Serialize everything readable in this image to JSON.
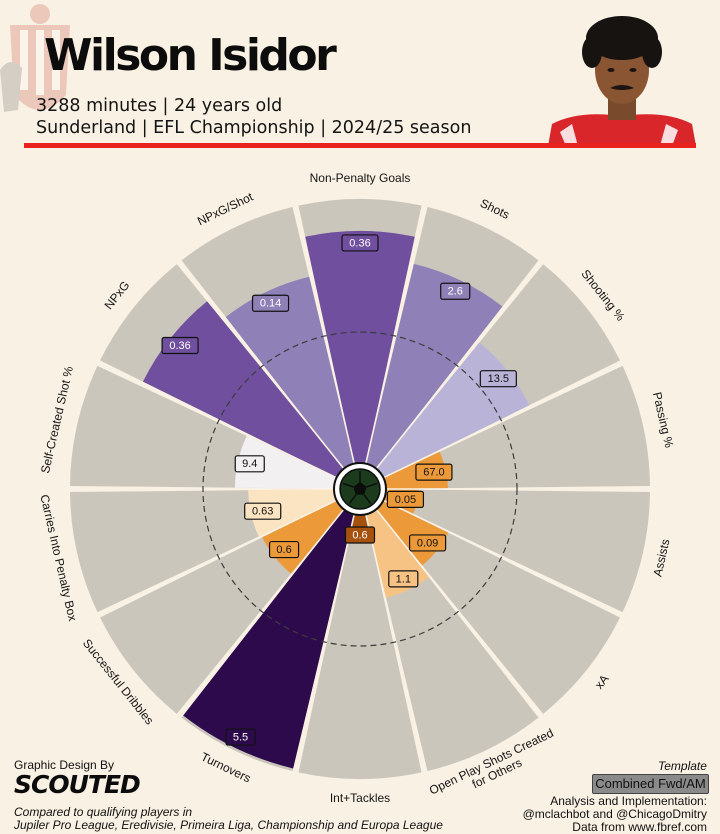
{
  "header": {
    "player_name": "Wilson Isidor",
    "stats_line": "3288 minutes | 24 years old",
    "context_line": "Sunderland | EFL Championship | 2024/25 season",
    "accent_color": "#e8231f"
  },
  "footer": {
    "design_by": "Graphic Design By",
    "brand": "SCOUTED",
    "compared_line1": "Compared to qualifying players in",
    "compared_line2": "Jupiler Pro League, Eredivisie, Primeira Liga, Championship and Europa League",
    "template_label": "Template",
    "template_value": "Combined Fwd/AM",
    "analysis_line1": "Analysis and Implementation:",
    "analysis_line2": "@mclachbot and @ChicagoDmitry",
    "data_source": "Data from www.fbref.com"
  },
  "icons": {
    "crest": "club-crest-icon",
    "photo": "player-photo",
    "center": "football-icon"
  },
  "chart_data": {
    "type": "radar",
    "value_range": [
      0,
      100
    ],
    "reference_circle": 50,
    "metrics": [
      {
        "label": "Non-Penalty Goals",
        "value_label": "0.36",
        "percentile": 88,
        "group": "attacking"
      },
      {
        "label": "Shots",
        "value_label": "2.6",
        "percentile": 78,
        "group": "attacking"
      },
      {
        "label": "Shooting %",
        "value_label": "13.5",
        "percentile": 62,
        "group": "attacking"
      },
      {
        "label": "Passing %",
        "value_label": "67.0",
        "percentile": 24,
        "group": "possession"
      },
      {
        "label": "Assists",
        "value_label": "0.05",
        "percentile": 13,
        "group": "possession"
      },
      {
        "label": "xA",
        "value_label": "0.09",
        "percentile": 28,
        "group": "possession"
      },
      {
        "label": "Open Play Shots Created for Others",
        "value_label": "1.1",
        "percentile": 33,
        "group": "possession"
      },
      {
        "label": "Int+Tackles",
        "value_label": "0.6",
        "percentile": 8,
        "group": "defending"
      },
      {
        "label": "Turnovers",
        "value_label": "5.5",
        "percentile": 99,
        "group": "turnovers"
      },
      {
        "label": "Successful Dribbles",
        "value_label": "0.6",
        "percentile": 32,
        "group": "possession"
      },
      {
        "label": "Carries Into Penalty Box",
        "value_label": "0.63",
        "percentile": 33,
        "group": "possession"
      },
      {
        "label": "Self-Created Shot %",
        "value_label": "9.4",
        "percentile": 38,
        "group": "neutral"
      },
      {
        "label": "NPxG",
        "value_label": "0.36",
        "percentile": 82,
        "group": "attacking"
      },
      {
        "label": "NPxG/Shot",
        "value_label": "0.14",
        "percentile": 73,
        "group": "attacking"
      }
    ],
    "colors": {
      "background_wedge": "#cbc6bc",
      "attacking_high": "#6f4f9e",
      "attacking_mid": "#8f81b8",
      "attacking_low": "#b9b3d8",
      "possession_strong": "#ec9a39",
      "possession_light": "#f7c384",
      "possession_pale": "#fbe4c2",
      "defending": "#a5520f",
      "turnovers": "#2d0a4c",
      "neutral": "#f2f0f0"
    }
  }
}
